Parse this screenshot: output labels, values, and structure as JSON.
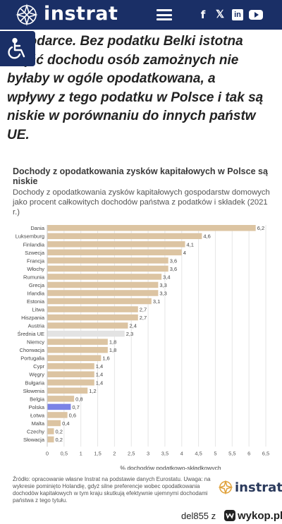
{
  "header": {
    "logo_text": "instrat",
    "icons": [
      "logo-icon",
      "menu-icon",
      "facebook-icon",
      "x-icon",
      "linkedin-icon",
      "youtube-icon"
    ],
    "background": "#1a2f66"
  },
  "accessibility": {
    "icon": "wheelchair-icon"
  },
  "article": {
    "lines": [
      "…podarce. Bez podatku Belki istotna",
      "część dochodu osób zamożnych nie",
      "byłaby w ogóle opodatkowana, a",
      "wpływy z tego podatku w Polsce i tak są",
      "niskie w porównaniu do innych państw",
      "UE."
    ]
  },
  "chart_data": {
    "type": "bar",
    "orientation": "horizontal",
    "title": "Dochody z opodatkowania zysków kapitałowych w Polsce są niskie",
    "subtitle": "Dochody z opodatkowania zysków kapitałowych gospodarstw domowych jako procent całkowitych dochodów państwa z podatków i składek (2021 r.)",
    "xlabel": "% dochodów podatkowo-składkowych",
    "xlim": [
      0,
      6.5
    ],
    "xticks": [
      "0",
      "0,5",
      "1",
      "1,5",
      "2",
      "2,5",
      "3",
      "3,5",
      "4",
      "4,5",
      "5",
      "5,5",
      "6",
      "6,5"
    ],
    "grid": true,
    "categories": [
      "Dania",
      "Luksemburg",
      "Finlandia",
      "Szwecja",
      "Francja",
      "Włochy",
      "Rumunia",
      "Grecja",
      "Irlandia",
      "Estonia",
      "Litwa",
      "Hiszpania",
      "Austria",
      "Średnia UE",
      "Niemcy",
      "Chorwacja",
      "Portugalia",
      "Cypr",
      "Węgry",
      "Bułgaria",
      "Słowenia",
      "Belgia",
      "Polska",
      "Łotwa",
      "Malta",
      "Czechy",
      "Słowacja"
    ],
    "values": [
      6.2,
      4.6,
      4.1,
      4,
      3.6,
      3.6,
      3.4,
      3.3,
      3.3,
      3.1,
      2.7,
      2.7,
      2.4,
      2.3,
      1.8,
      1.8,
      1.6,
      1.4,
      1.4,
      1.4,
      1.2,
      0.8,
      0.7,
      0.6,
      0.4,
      0.2,
      0.2
    ],
    "value_labels": [
      "6,2",
      "4,6",
      "4,1",
      "4",
      "3,6",
      "3,6",
      "3,4",
      "3,3",
      "3,3",
      "3,1",
      "2,7",
      "2,7",
      "2,4",
      "2,3",
      "1,8",
      "1,8",
      "1,6",
      "1,4",
      "1,4",
      "1,4",
      "1,2",
      "0,8",
      "0,7",
      "0,6",
      "0,4",
      "0,2",
      "0,2"
    ],
    "colors": {
      "default": "#dcc4a2",
      "Polska": "#7b83e6",
      "Średnia UE": "#e3e3e3"
    }
  },
  "source": {
    "text": "Źródło: opracowanie własne Instrat na podstawie danych Eurostatu. Uwaga: na wykresie pominięto Holandię, gdyż silne preferencje wobec opodatkowania dochodów kapitałowych w tym kraju skutkują efektywnie ujemnymi dochodami państwa z tego tytułu."
  },
  "footer": {
    "logo_text": "instrat"
  },
  "watermark": {
    "user": "del855",
    "sep": "z",
    "site": "wykop.pl"
  }
}
